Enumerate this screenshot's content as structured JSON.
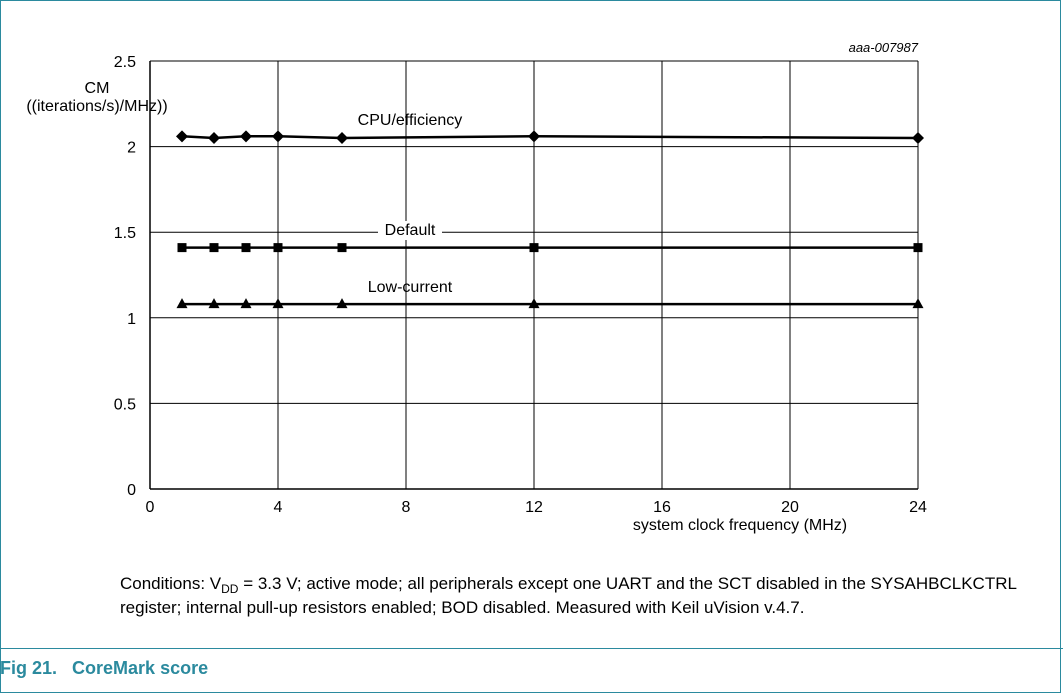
{
  "figure": {
    "id_tag": "aaa-007987",
    "caption_number": "Fig 21.",
    "caption_title": "CoreMark score"
  },
  "conditions": {
    "prefix": "Conditions: V",
    "subscript": "DD",
    "rest": " = 3.3 V; active mode; all peripherals except one UART and the SCT disabled in the SYSAHBCLKCTRL register; internal pull-up resistors enabled; BOD disabled. Measured with Keil uVision v.4.7."
  },
  "chart_data": {
    "type": "line",
    "ylabel_line1": "CM",
    "ylabel_line2": "((iterations/s)/MHz))",
    "xlabel": "system clock frequency (MHz)",
    "xlim": [
      0,
      24
    ],
    "ylim": [
      0,
      2.5
    ],
    "x_ticks": [
      0,
      4,
      8,
      12,
      16,
      20,
      24
    ],
    "y_ticks": [
      0,
      0.5,
      1,
      1.5,
      2,
      2.5
    ],
    "x_tick_labels": [
      "0",
      "4",
      "8",
      "12",
      "16",
      "20",
      "24"
    ],
    "y_tick_labels": [
      "0",
      "0.5",
      "1",
      "1.5",
      "2",
      "2.5"
    ],
    "grid": true,
    "series": [
      {
        "name": "CPU/efficiency",
        "marker": "diamond",
        "x": [
          1,
          2,
          3,
          4,
          6,
          12,
          24
        ],
        "y": [
          2.06,
          2.05,
          2.06,
          2.06,
          2.05,
          2.06,
          2.05
        ]
      },
      {
        "name": "Default",
        "marker": "square",
        "x": [
          1,
          2,
          3,
          4,
          6,
          12,
          24
        ],
        "y": [
          1.41,
          1.41,
          1.41,
          1.41,
          1.41,
          1.41,
          1.41
        ]
      },
      {
        "name": "Low-current",
        "marker": "triangle",
        "x": [
          1,
          2,
          3,
          4,
          6,
          12,
          24
        ],
        "y": [
          1.08,
          1.08,
          1.08,
          1.08,
          1.08,
          1.08,
          1.08
        ]
      }
    ]
  }
}
